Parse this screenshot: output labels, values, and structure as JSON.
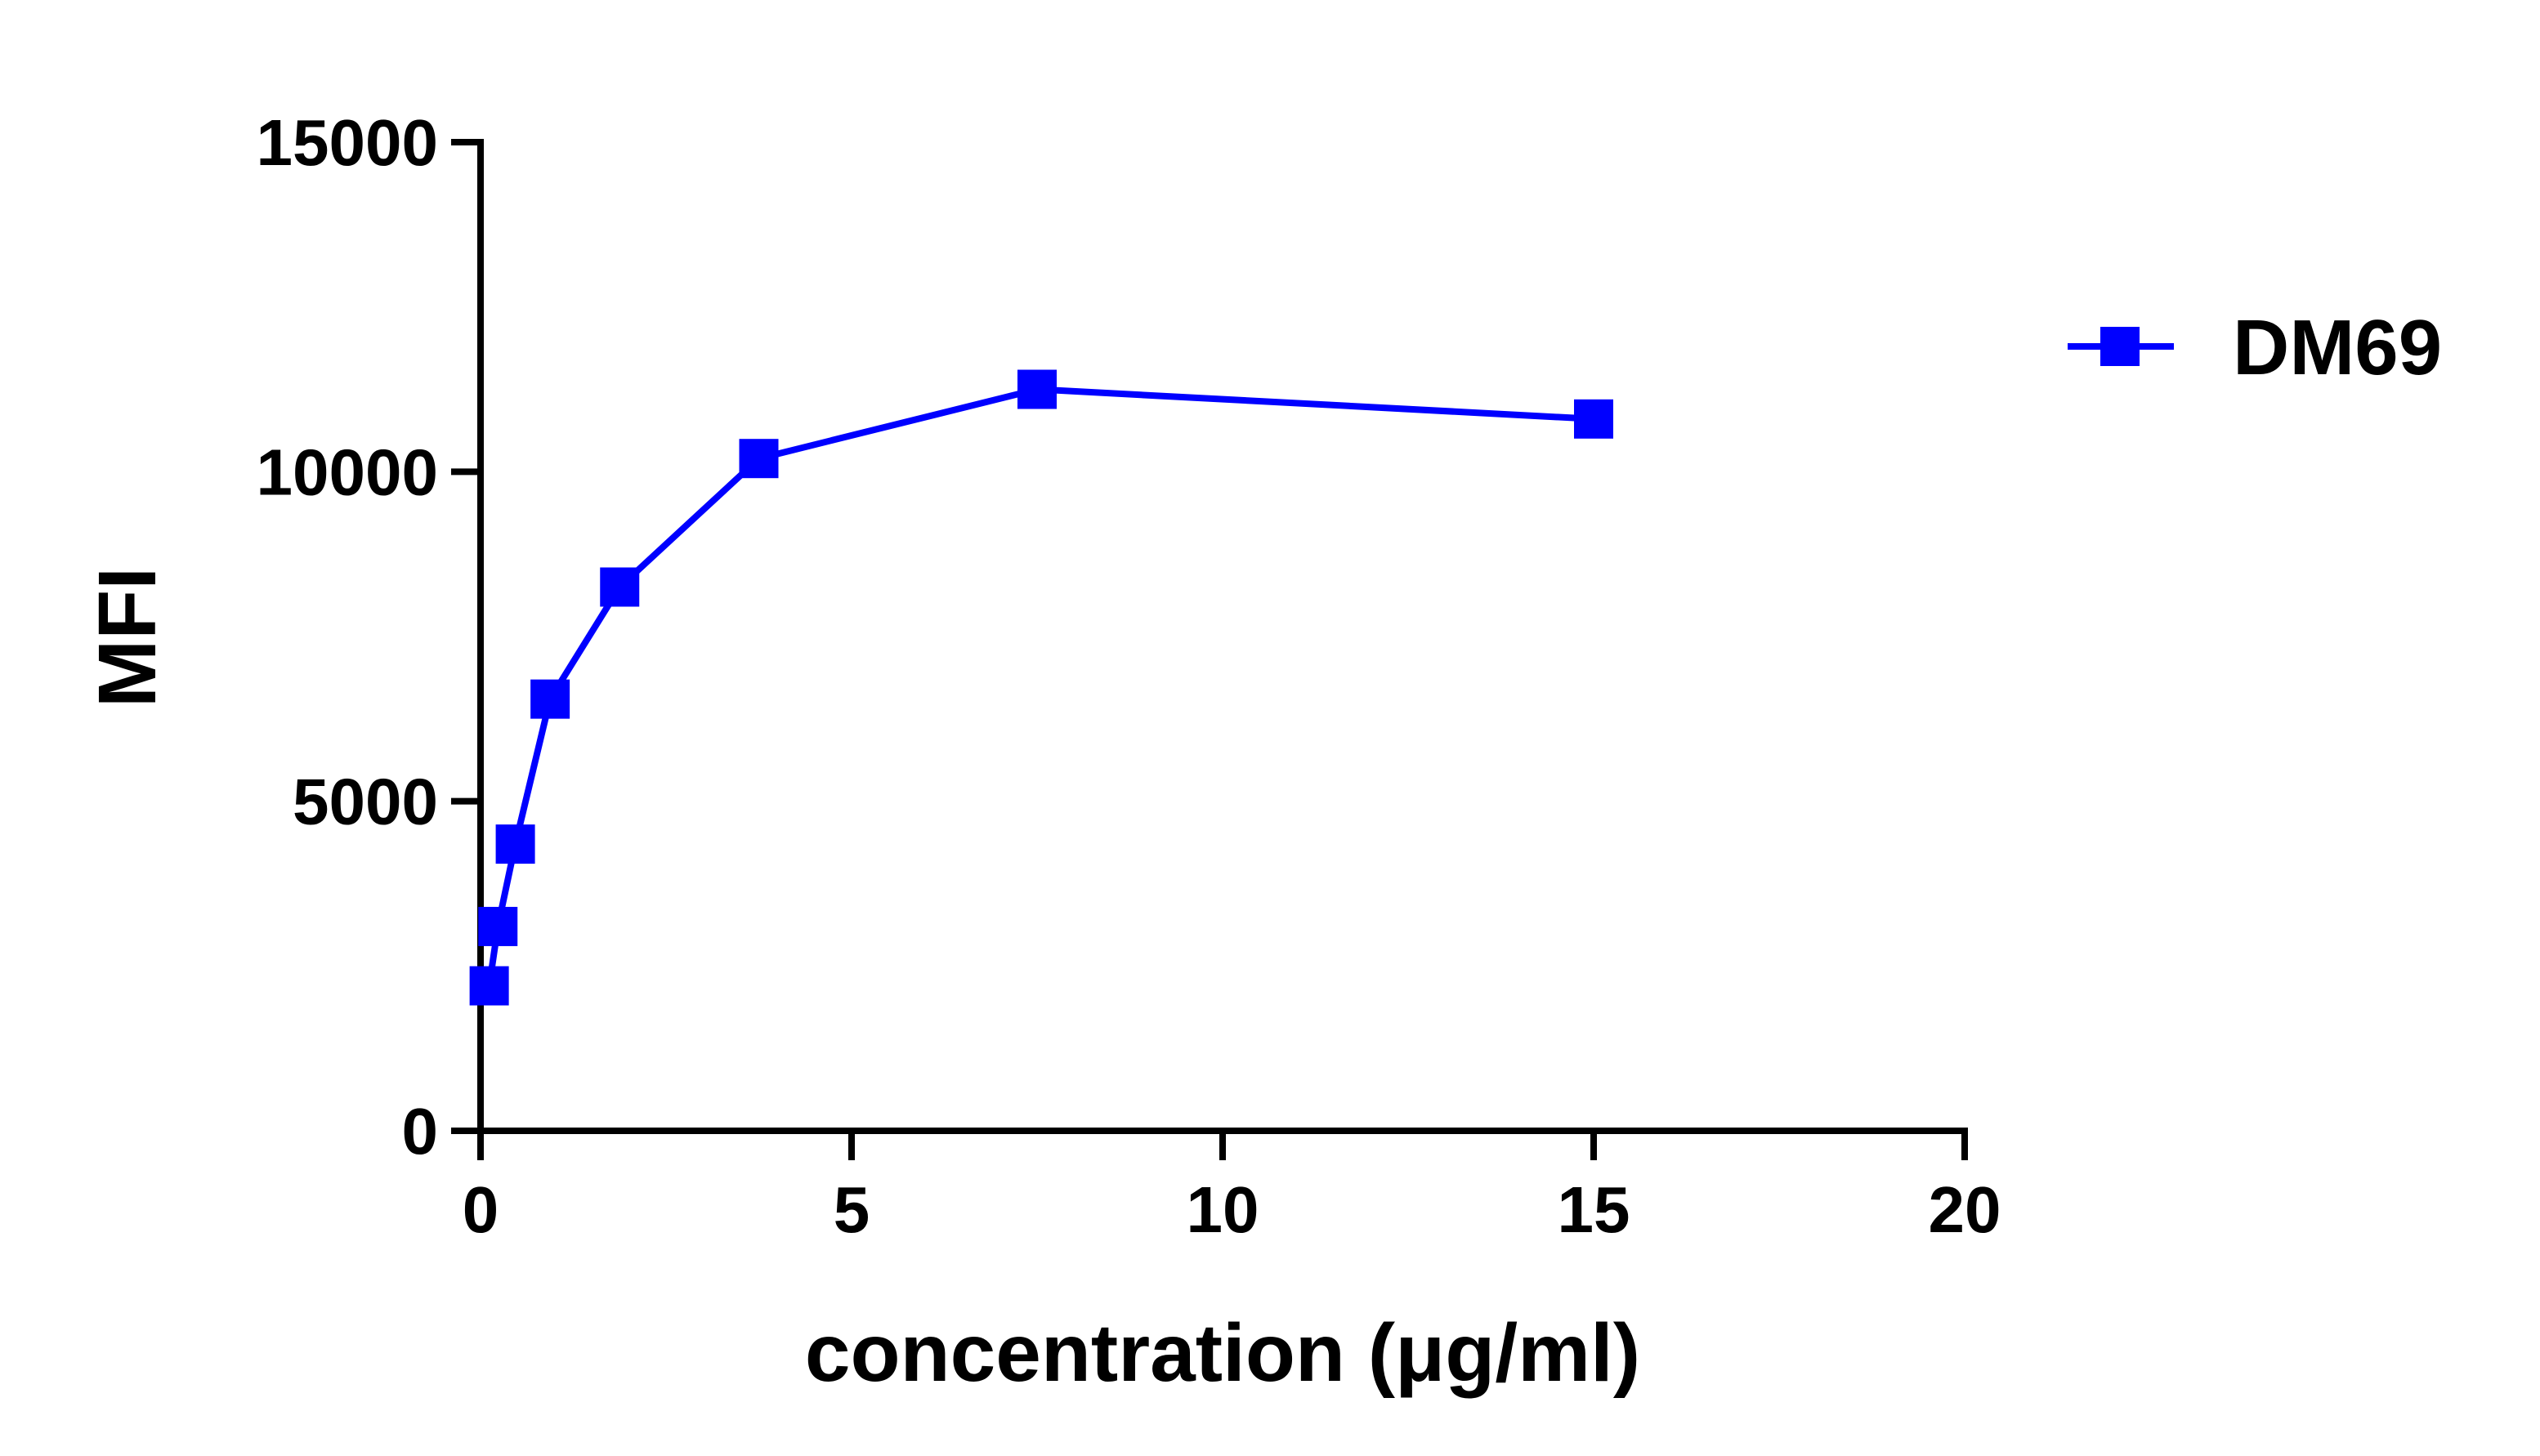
{
  "chart_data": {
    "type": "line",
    "title": "",
    "xlabel": "concentration (μg/ml)",
    "ylabel": "MFI",
    "xlim": [
      0,
      20
    ],
    "ylim": [
      0,
      15000
    ],
    "xticks": [
      "0",
      "5",
      "10",
      "15",
      "20"
    ],
    "yticks": [
      "0",
      "5000",
      "10000",
      "15000"
    ],
    "grid": false,
    "legend_position": "right",
    "series": [
      {
        "name": "DM69",
        "color": "#0000ff",
        "marker": "square",
        "x": [
          0.117,
          0.234,
          0.469,
          0.9375,
          1.875,
          3.75,
          7.5,
          15
        ],
        "y": [
          2200,
          3100,
          4350,
          6550,
          8250,
          10200,
          11250,
          10800
        ]
      }
    ]
  }
}
